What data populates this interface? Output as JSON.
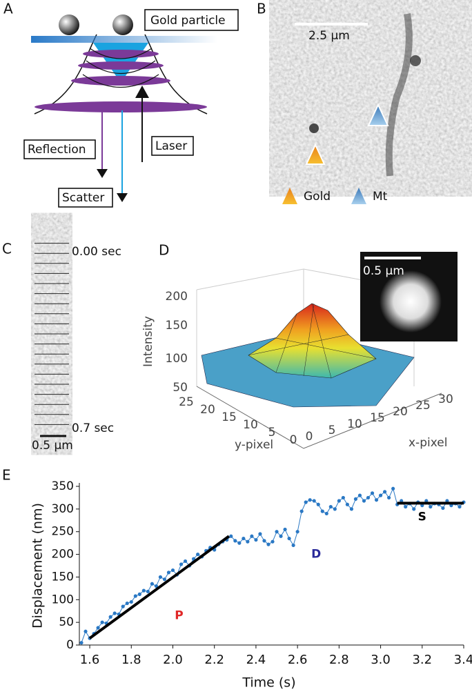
{
  "panel_a": {
    "label": "A",
    "gold_particle": "Gold particle",
    "reflection": "Reflection",
    "laser": "Laser",
    "scatter": "Scatter"
  },
  "panel_b": {
    "label": "B",
    "scale": "2.5 μm",
    "legend": [
      "Gold",
      "Mt"
    ]
  },
  "panel_c": {
    "label": "C",
    "start": "0.00 sec",
    "end": "0.7 sec",
    "scale": "0.5 μm"
  },
  "panel_d": {
    "label": "D",
    "inset_scale": "0.5 μm",
    "z_label": "Intensity",
    "zticks": [
      200,
      150,
      100,
      50
    ],
    "y_label": "y-pixel",
    "yticks": [
      25,
      20,
      15,
      10,
      5,
      0
    ],
    "x_label": "x-pixel",
    "xticks": [
      0,
      5,
      10,
      15,
      20,
      25,
      30
    ]
  },
  "chart_data": {
    "type": "line",
    "panel_label": "E",
    "x_label": "Time (s)",
    "y_label": "Displacement (nm)",
    "x": [
      1.56,
      1.58,
      1.6,
      1.62,
      1.64,
      1.66,
      1.68,
      1.7,
      1.72,
      1.74,
      1.76,
      1.78,
      1.8,
      1.82,
      1.84,
      1.86,
      1.88,
      1.9,
      1.92,
      1.94,
      1.96,
      1.98,
      2.0,
      2.02,
      2.04,
      2.06,
      2.08,
      2.1,
      2.12,
      2.14,
      2.16,
      2.18,
      2.2,
      2.22,
      2.24,
      2.26,
      2.28,
      2.3,
      2.32,
      2.34,
      2.36,
      2.38,
      2.4,
      2.42,
      2.44,
      2.46,
      2.48,
      2.5,
      2.52,
      2.54,
      2.56,
      2.58,
      2.6,
      2.62,
      2.64,
      2.66,
      2.68,
      2.7,
      2.72,
      2.74,
      2.76,
      2.78,
      2.8,
      2.82,
      2.84,
      2.86,
      2.88,
      2.9,
      2.92,
      2.94,
      2.96,
      2.98,
      3.0,
      3.02,
      3.04,
      3.06,
      3.08,
      3.1,
      3.12,
      3.14,
      3.16,
      3.18,
      3.2,
      3.22,
      3.24,
      3.26,
      3.28,
      3.3,
      3.32,
      3.34,
      3.36,
      3.38,
      3.4
    ],
    "series": [
      {
        "color": "#2a78c4",
        "values": [
          5,
          30,
          15,
          25,
          38,
          50,
          48,
          62,
          70,
          68,
          85,
          92,
          95,
          108,
          112,
          120,
          118,
          135,
          130,
          150,
          145,
          160,
          165,
          155,
          178,
          185,
          175,
          190,
          200,
          195,
          208,
          215,
          210,
          222,
          228,
          232,
          240,
          230,
          225,
          235,
          228,
          240,
          232,
          245,
          230,
          222,
          228,
          250,
          240,
          255,
          235,
          220,
          250,
          295,
          315,
          320,
          318,
          310,
          295,
          290,
          305,
          300,
          318,
          325,
          310,
          300,
          322,
          330,
          318,
          325,
          335,
          320,
          330,
          338,
          325,
          345,
          310,
          318,
          305,
          312,
          300,
          315,
          308,
          318,
          305,
          312,
          310,
          302,
          318,
          308,
          312,
          305,
          315
        ]
      }
    ],
    "fits": [
      {
        "x": [
          1.6,
          2.27
        ],
        "values": [
          15,
          240
        ],
        "color": "#000000"
      },
      {
        "x": [
          3.08,
          3.4
        ],
        "values": [
          313,
          313
        ],
        "color": "#000000"
      }
    ],
    "annotations": [
      {
        "text": "P",
        "x": 2.03,
        "y": 65,
        "color": "#e02828"
      },
      {
        "text": "D",
        "x": 2.69,
        "y": 200,
        "color": "#2a2a9a"
      },
      {
        "text": "S",
        "x": 3.2,
        "y": 282,
        "color": "#000000"
      }
    ],
    "xlim": [
      1.55,
      3.4
    ],
    "xticks": [
      1.6,
      1.8,
      {
        "value": 2,
        "label": "2.0"
      },
      2.2,
      2.4,
      2.6,
      2.8,
      {
        "value": 3,
        "label": "3.0"
      },
      3.2,
      3.4
    ],
    "ylim": [
      0,
      350
    ],
    "yticks": [
      0,
      50,
      100,
      150,
      200,
      250,
      300,
      350
    ]
  }
}
